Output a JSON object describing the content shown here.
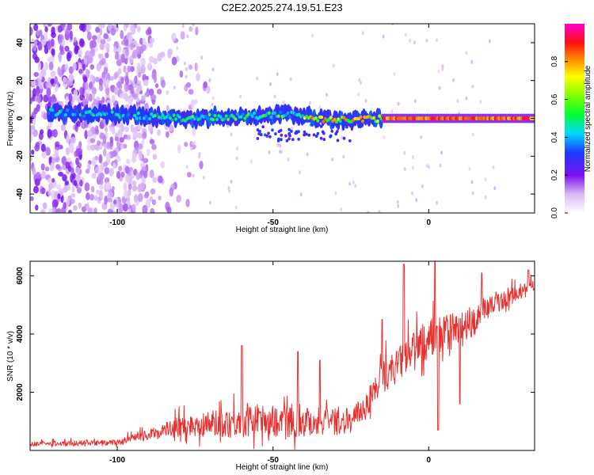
{
  "figure": {
    "title": "C2E2.2025.274.19.51.E23"
  },
  "chart_data": [
    {
      "type": "heatmap",
      "name": "spectrogram",
      "title": "C2E2.2025.274.19.51.E23",
      "xlabel": "Height of straight line (km)",
      "ylabel": "Frequency (Hz)",
      "xlim": [
        -128,
        34
      ],
      "ylim": [
        -50,
        50
      ],
      "xticks": [
        -100,
        -50,
        0
      ],
      "yticks": [
        -40,
        -20,
        0,
        20,
        40
      ],
      "xtick_labels": [
        "-100",
        "-50",
        "0"
      ],
      "ytick_labels": [
        "-40",
        "-20",
        "0",
        "20",
        "40"
      ],
      "ridge_frequency_hz": 0,
      "ridge_description_points": [
        {
          "x": -118,
          "f": 3
        },
        {
          "x": -100,
          "f": 2
        },
        {
          "x": -80,
          "f": 0
        },
        {
          "x": -60,
          "f": 1
        },
        {
          "x": -45,
          "f": 2
        },
        {
          "x": -30,
          "f": -1
        },
        {
          "x": -15,
          "f": 0
        },
        {
          "x": 0,
          "f": 0
        },
        {
          "x": 30,
          "f": 0
        }
      ],
      "colorbar": {
        "label": "Normalized spectral amplitude",
        "range": [
          0,
          1
        ],
        "ticks": [
          0.0,
          0.2,
          0.4,
          0.6,
          0.8
        ],
        "tick_labels": [
          "0.0",
          "0.2",
          "0.4",
          "0.6",
          "0.8"
        ]
      }
    },
    {
      "type": "line",
      "name": "snr",
      "xlabel": "Height of straight line (km)",
      "ylabel": "SNR (10 * v/v)",
      "xlim": [
        -128,
        34
      ],
      "ylim": [
        0,
        6500
      ],
      "xticks": [
        -100,
        -50,
        0
      ],
      "yticks": [
        2000,
        4000,
        6000
      ],
      "xtick_labels": [
        "-100",
        "-50",
        "0"
      ],
      "ytick_labels": [
        "2000",
        "4000",
        "6000"
      ],
      "color": "#e8312f",
      "envelope": [
        {
          "x": -128,
          "base": 200,
          "amp": 150
        },
        {
          "x": -100,
          "base": 250,
          "amp": 200
        },
        {
          "x": -90,
          "base": 500,
          "amp": 350
        },
        {
          "x": -80,
          "base": 750,
          "amp": 700
        },
        {
          "x": -60,
          "base": 900,
          "amp": 1100
        },
        {
          "x": -40,
          "base": 900,
          "amp": 1100
        },
        {
          "x": -25,
          "base": 900,
          "amp": 800
        },
        {
          "x": -20,
          "base": 1500,
          "amp": 900
        },
        {
          "x": -15,
          "base": 2400,
          "amp": 1100
        },
        {
          "x": -10,
          "base": 2800,
          "amp": 1200
        },
        {
          "x": -5,
          "base": 3300,
          "amp": 1200
        },
        {
          "x": 0,
          "base": 3700,
          "amp": 1400
        },
        {
          "x": 10,
          "base": 4000,
          "amp": 1300
        },
        {
          "x": 20,
          "base": 4900,
          "amp": 700
        },
        {
          "x": 34,
          "base": 5600,
          "amp": 400
        }
      ],
      "spikes": [
        {
          "x": -60,
          "y": 3600
        },
        {
          "x": -42,
          "y": 3400
        },
        {
          "x": -35,
          "y": 3100
        },
        {
          "x": -15,
          "y": 4500
        },
        {
          "x": -8,
          "y": 6400
        },
        {
          "x": 2,
          "y": 6500
        },
        {
          "x": 3,
          "y": 700
        },
        {
          "x": 10,
          "y": 1600
        },
        {
          "x": 17,
          "y": 6100
        },
        {
          "x": 32,
          "y": 6200
        }
      ]
    }
  ]
}
